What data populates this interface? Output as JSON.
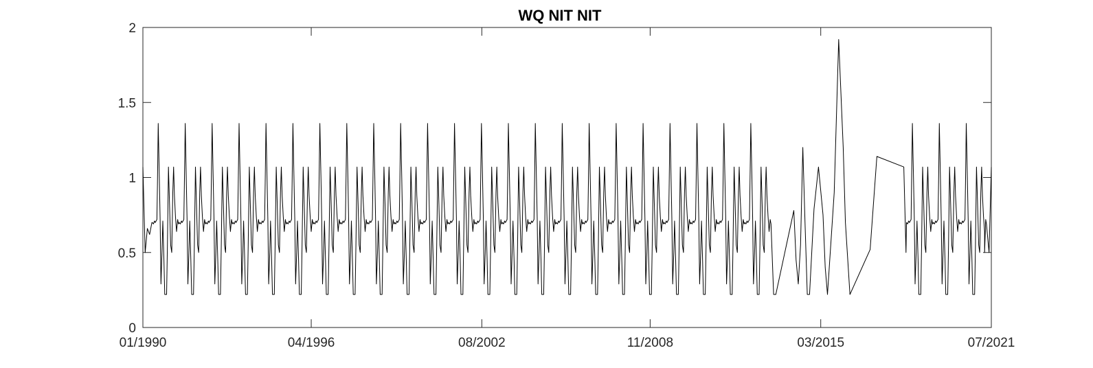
{
  "chart_data": {
    "type": "line",
    "title": "WQ NIT NIT",
    "xlabel": "",
    "ylabel": "",
    "x_range": [
      "1990-01",
      "2021-07"
    ],
    "ylim": [
      0,
      2
    ],
    "y_ticks": [
      0,
      0.5,
      1,
      1.5,
      2
    ],
    "y_tick_labels": [
      "0",
      "0.5",
      "1",
      "1.5",
      "2"
    ],
    "x_ticks": [
      "1990-01",
      "1996-04",
      "2002-08",
      "2008-11",
      "2015-03",
      "2021-07"
    ],
    "x_tick_labels": [
      "01/1990",
      "04/1996",
      "08/2002",
      "11/2008",
      "03/2015",
      "07/2021"
    ],
    "grid": false,
    "box": true,
    "series": [
      {
        "color": "#000000",
        "annual_cycle_pattern": {
          "description": "repeating year pattern; year offsets in fractional years",
          "points": [
            [
              0.0,
              0.7
            ],
            [
              0.04,
              0.69
            ],
            [
              0.08,
              0.71
            ],
            [
              0.11,
              0.7
            ],
            [
              0.14,
              0.71
            ],
            [
              0.17,
              0.72
            ],
            [
              0.19,
              0.96
            ],
            [
              0.22,
              1.36
            ],
            [
              0.26,
              1.0
            ],
            [
              0.29,
              0.72
            ],
            [
              0.32,
              0.29
            ],
            [
              0.36,
              0.5
            ],
            [
              0.39,
              0.71
            ],
            [
              0.43,
              0.45
            ],
            [
              0.46,
              0.22
            ],
            [
              0.5,
              0.22
            ],
            [
              0.53,
              0.22
            ],
            [
              0.56,
              0.55
            ],
            [
              0.6,
              1.07
            ],
            [
              0.64,
              0.82
            ],
            [
              0.68,
              0.55
            ],
            [
              0.72,
              0.5
            ],
            [
              0.76,
              0.9
            ],
            [
              0.79,
              1.07
            ],
            [
              0.82,
              0.88
            ],
            [
              0.86,
              0.74
            ],
            [
              0.9,
              0.64
            ],
            [
              0.94,
              0.72
            ],
            [
              0.97,
              0.69
            ]
          ]
        },
        "cycle_years_first": [
          1990,
          2012
        ],
        "cycle_years_last": [
          2018,
          2021
        ],
        "values": [
          [
            "1990-01",
            1.07
          ],
          [
            "1990-02",
            0.5
          ],
          [
            "1990-03",
            0.66
          ],
          [
            "1990-04",
            0.62
          ],
          [
            "1990-05",
            0.7
          ],
          [
            "2013-06",
            0.22
          ],
          [
            "2013-07",
            0.22
          ],
          [
            "2014-03",
            0.78
          ],
          [
            "2014-04",
            0.45
          ],
          [
            "2014-05",
            0.29
          ],
          [
            "2014-06",
            0.55
          ],
          [
            "2014-07",
            1.2
          ],
          [
            "2014-08",
            0.7
          ],
          [
            "2014-09",
            0.22
          ],
          [
            "2014-10",
            0.22
          ],
          [
            "2014-12",
            0.79
          ],
          [
            "2015-02",
            1.07
          ],
          [
            "2015-04",
            0.75
          ],
          [
            "2015-05",
            0.4
          ],
          [
            "2015-06",
            0.22
          ],
          [
            "2015-09",
            0.9
          ],
          [
            "2015-11",
            1.92
          ],
          [
            "2016-01",
            1.2
          ],
          [
            "2016-02",
            0.7
          ],
          [
            "2016-04",
            0.22
          ],
          [
            "2017-01",
            0.52
          ],
          [
            "2017-04",
            1.14
          ],
          [
            "2018-04",
            1.07
          ],
          [
            "2018-05",
            0.5
          ],
          [
            "2021-04",
            0.5
          ],
          [
            "2021-06",
            0.5
          ],
          [
            "2021-07",
            1.07
          ]
        ]
      }
    ]
  }
}
